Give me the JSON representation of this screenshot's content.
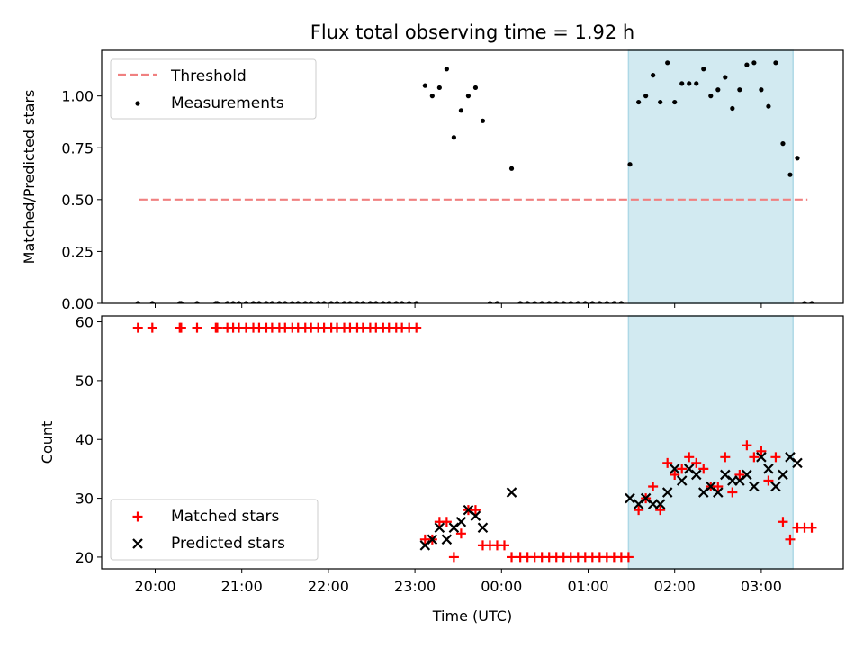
{
  "title": "Flux total observing time = 1.92 h",
  "colors": {
    "threshold": "#f08080",
    "measurement": "#000000",
    "matched": "#ff0000",
    "predicted": "#000000",
    "span": "#add8e6"
  },
  "chart_data": [
    {
      "type": "scatter",
      "ylabel": "Matched/Predicted stars",
      "ylim": [
        0,
        1.22
      ],
      "yticks": [
        "0.00",
        "0.25",
        "0.50",
        "0.75",
        "1.00"
      ],
      "legend_position": "top-left",
      "legend": [
        "Threshold",
        "Measurements"
      ],
      "threshold": {
        "name": "Threshold",
        "value": 0.5,
        "x_start": "19:49",
        "x_end": "03:32"
      },
      "shaded_span": {
        "x_start": "01:28",
        "x_end": "03:22"
      },
      "series": [
        {
          "name": "Measurements",
          "points": [
            [
              "19:48",
              0
            ],
            [
              "19:58",
              0
            ],
            [
              "20:17",
              0
            ],
            [
              "20:18",
              0
            ],
            [
              "20:29",
              0
            ],
            [
              "20:42",
              0
            ],
            [
              "20:43",
              0
            ],
            [
              "20:50",
              0
            ],
            [
              "20:54",
              0
            ],
            [
              "20:58",
              0
            ],
            [
              "21:03",
              0
            ],
            [
              "21:08",
              0
            ],
            [
              "21:12",
              0
            ],
            [
              "21:17",
              0
            ],
            [
              "21:21",
              0
            ],
            [
              "21:26",
              0
            ],
            [
              "21:30",
              0
            ],
            [
              "21:35",
              0
            ],
            [
              "21:39",
              0
            ],
            [
              "21:44",
              0
            ],
            [
              "21:48",
              0
            ],
            [
              "21:53",
              0
            ],
            [
              "21:57",
              0
            ],
            [
              "22:02",
              0
            ],
            [
              "22:06",
              0
            ],
            [
              "22:11",
              0
            ],
            [
              "22:15",
              0
            ],
            [
              "22:20",
              0
            ],
            [
              "22:24",
              0
            ],
            [
              "22:29",
              0
            ],
            [
              "22:33",
              0
            ],
            [
              "22:38",
              0
            ],
            [
              "22:42",
              0
            ],
            [
              "22:47",
              0
            ],
            [
              "22:51",
              0
            ],
            [
              "22:56",
              0
            ],
            [
              "23:01",
              0
            ],
            [
              "23:07",
              1.05
            ],
            [
              "23:12",
              1.0
            ],
            [
              "23:17",
              1.04
            ],
            [
              "23:22",
              1.13
            ],
            [
              "23:27",
              0.8
            ],
            [
              "23:32",
              0.93
            ],
            [
              "23:37",
              1.0
            ],
            [
              "23:42",
              1.04
            ],
            [
              "23:47",
              0.88
            ],
            [
              "23:52",
              0
            ],
            [
              "23:57",
              0
            ],
            [
              "00:07",
              0.65
            ],
            [
              "00:13",
              0
            ],
            [
              "00:18",
              0
            ],
            [
              "00:23",
              0
            ],
            [
              "00:28",
              0
            ],
            [
              "00:33",
              0
            ],
            [
              "00:38",
              0
            ],
            [
              "00:43",
              0
            ],
            [
              "00:48",
              0
            ],
            [
              "00:53",
              0
            ],
            [
              "00:58",
              0
            ],
            [
              "01:03",
              0
            ],
            [
              "01:08",
              0
            ],
            [
              "01:13",
              0
            ],
            [
              "01:18",
              0
            ],
            [
              "01:23",
              0
            ],
            [
              "01:29",
              0.67
            ],
            [
              "01:35",
              0.97
            ],
            [
              "01:40",
              1.0
            ],
            [
              "01:45",
              1.1
            ],
            [
              "01:50",
              0.97
            ],
            [
              "01:55",
              1.16
            ],
            [
              "02:00",
              0.97
            ],
            [
              "02:05",
              1.06
            ],
            [
              "02:10",
              1.06
            ],
            [
              "02:15",
              1.06
            ],
            [
              "02:20",
              1.13
            ],
            [
              "02:25",
              1.0
            ],
            [
              "02:30",
              1.03
            ],
            [
              "02:35",
              1.09
            ],
            [
              "02:40",
              0.94
            ],
            [
              "02:45",
              1.03
            ],
            [
              "02:50",
              1.15
            ],
            [
              "02:55",
              1.16
            ],
            [
              "03:00",
              1.03
            ],
            [
              "03:05",
              0.95
            ],
            [
              "03:10",
              1.16
            ],
            [
              "03:15",
              0.77
            ],
            [
              "03:20",
              0.62
            ],
            [
              "03:25",
              0.7
            ],
            [
              "03:30",
              0
            ],
            [
              "03:35",
              0
            ]
          ]
        }
      ]
    },
    {
      "type": "scatter",
      "xlabel": "Time (UTC)",
      "ylabel": "Count",
      "ylim": [
        18,
        61
      ],
      "yticks": [
        "20",
        "30",
        "40",
        "50",
        "60"
      ],
      "xticks": [
        "20:00",
        "21:00",
        "22:00",
        "23:00",
        "00:00",
        "01:00",
        "02:00",
        "03:00"
      ],
      "legend_position": "bottom-left",
      "legend": [
        "Matched stars",
        "Predicted stars"
      ],
      "shaded_span": {
        "x_start": "01:28",
        "x_end": "03:22"
      },
      "series": [
        {
          "name": "Matched stars",
          "marker": "plus",
          "points": [
            [
              "19:48",
              59
            ],
            [
              "19:58",
              59
            ],
            [
              "20:17",
              59
            ],
            [
              "20:18",
              59
            ],
            [
              "20:29",
              59
            ],
            [
              "20:42",
              59
            ],
            [
              "20:43",
              59
            ],
            [
              "20:50",
              59
            ],
            [
              "20:54",
              59
            ],
            [
              "20:58",
              59
            ],
            [
              "21:03",
              59
            ],
            [
              "21:08",
              59
            ],
            [
              "21:12",
              59
            ],
            [
              "21:17",
              59
            ],
            [
              "21:21",
              59
            ],
            [
              "21:26",
              59
            ],
            [
              "21:30",
              59
            ],
            [
              "21:35",
              59
            ],
            [
              "21:39",
              59
            ],
            [
              "21:44",
              59
            ],
            [
              "21:48",
              59
            ],
            [
              "21:53",
              59
            ],
            [
              "21:57",
              59
            ],
            [
              "22:02",
              59
            ],
            [
              "22:06",
              59
            ],
            [
              "22:11",
              59
            ],
            [
              "22:15",
              59
            ],
            [
              "22:20",
              59
            ],
            [
              "22:24",
              59
            ],
            [
              "22:29",
              59
            ],
            [
              "22:33",
              59
            ],
            [
              "22:38",
              59
            ],
            [
              "22:42",
              59
            ],
            [
              "22:47",
              59
            ],
            [
              "22:51",
              59
            ],
            [
              "22:56",
              59
            ],
            [
              "23:01",
              59
            ],
            [
              "23:07",
              23
            ],
            [
              "23:12",
              23
            ],
            [
              "23:17",
              26
            ],
            [
              "23:22",
              26
            ],
            [
              "23:27",
              20
            ],
            [
              "23:32",
              24
            ],
            [
              "23:37",
              28
            ],
            [
              "23:42",
              28
            ],
            [
              "23:47",
              22
            ],
            [
              "23:52",
              22
            ],
            [
              "23:57",
              22
            ],
            [
              "00:02",
              22
            ],
            [
              "00:07",
              20
            ],
            [
              "00:13",
              20
            ],
            [
              "00:18",
              20
            ],
            [
              "00:23",
              20
            ],
            [
              "00:28",
              20
            ],
            [
              "00:33",
              20
            ],
            [
              "00:38",
              20
            ],
            [
              "00:43",
              20
            ],
            [
              "00:48",
              20
            ],
            [
              "00:53",
              20
            ],
            [
              "00:58",
              20
            ],
            [
              "01:03",
              20
            ],
            [
              "01:08",
              20
            ],
            [
              "01:13",
              20
            ],
            [
              "01:18",
              20
            ],
            [
              "01:23",
              20
            ],
            [
              "01:28",
              20
            ],
            [
              "01:35",
              28
            ],
            [
              "01:40",
              30
            ],
            [
              "01:45",
              32
            ],
            [
              "01:50",
              28
            ],
            [
              "01:55",
              36
            ],
            [
              "02:00",
              34
            ],
            [
              "02:05",
              35
            ],
            [
              "02:10",
              37
            ],
            [
              "02:15",
              36
            ],
            [
              "02:20",
              35
            ],
            [
              "02:25",
              32
            ],
            [
              "02:30",
              32
            ],
            [
              "02:35",
              37
            ],
            [
              "02:40",
              31
            ],
            [
              "02:45",
              34
            ],
            [
              "02:50",
              39
            ],
            [
              "02:55",
              37
            ],
            [
              "03:00",
              38
            ],
            [
              "03:05",
              33
            ],
            [
              "03:10",
              37
            ],
            [
              "03:15",
              26
            ],
            [
              "03:20",
              23
            ],
            [
              "03:25",
              25
            ],
            [
              "03:30",
              25
            ],
            [
              "03:35",
              25
            ]
          ]
        },
        {
          "name": "Predicted stars",
          "marker": "x",
          "points": [
            [
              "23:07",
              22
            ],
            [
              "23:12",
              23
            ],
            [
              "23:17",
              25
            ],
            [
              "23:22",
              23
            ],
            [
              "23:27",
              25
            ],
            [
              "23:32",
              26
            ],
            [
              "23:37",
              28
            ],
            [
              "23:42",
              27
            ],
            [
              "23:47",
              25
            ],
            [
              "00:07",
              31
            ],
            [
              "01:29",
              30
            ],
            [
              "01:35",
              29
            ],
            [
              "01:40",
              30
            ],
            [
              "01:45",
              29
            ],
            [
              "01:50",
              29
            ],
            [
              "01:55",
              31
            ],
            [
              "02:00",
              35
            ],
            [
              "02:05",
              33
            ],
            [
              "02:10",
              35
            ],
            [
              "02:15",
              34
            ],
            [
              "02:20",
              31
            ],
            [
              "02:25",
              32
            ],
            [
              "02:30",
              31
            ],
            [
              "02:35",
              34
            ],
            [
              "02:40",
              33
            ],
            [
              "02:45",
              33
            ],
            [
              "02:50",
              34
            ],
            [
              "02:55",
              32
            ],
            [
              "03:00",
              37
            ],
            [
              "03:05",
              35
            ],
            [
              "03:10",
              32
            ],
            [
              "03:15",
              34
            ],
            [
              "03:20",
              37
            ],
            [
              "03:25",
              36
            ]
          ]
        }
      ]
    }
  ]
}
